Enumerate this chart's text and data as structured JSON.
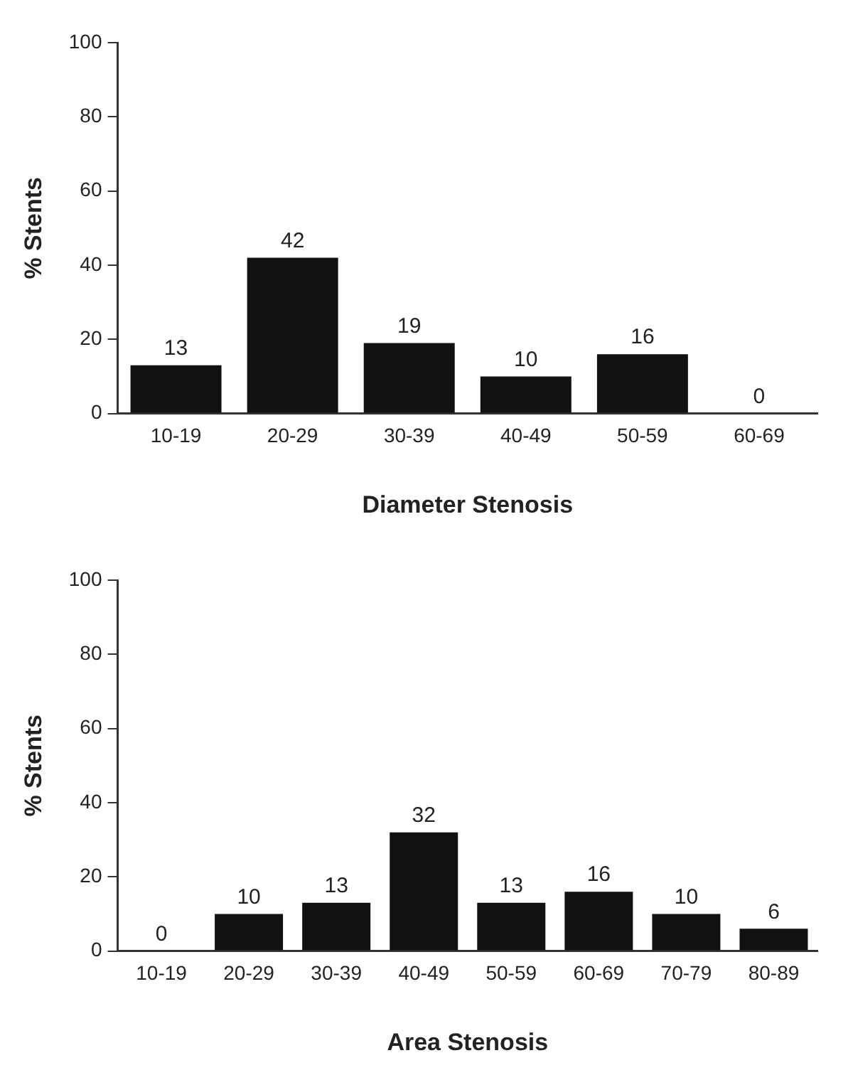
{
  "chart_data": [
    {
      "type": "bar",
      "xlabel": "Diameter Stenosis",
      "ylabel": "% Stents",
      "categories": [
        "10-19",
        "20-29",
        "30-39",
        "40-49",
        "50-59",
        "60-69"
      ],
      "values": [
        13,
        42,
        19,
        10,
        16,
        0
      ],
      "color": "#111111",
      "ylim": [
        0,
        100
      ],
      "yticks": [
        0,
        20,
        40,
        60,
        80,
        100
      ],
      "grid": false,
      "legend": false,
      "data_labels": true
    },
    {
      "type": "bar",
      "xlabel": "Area Stenosis",
      "ylabel": "% Stents",
      "categories": [
        "10-19",
        "20-29",
        "30-39",
        "40-49",
        "50-59",
        "60-69",
        "70-79",
        "80-89"
      ],
      "values": [
        0,
        10,
        13,
        32,
        13,
        16,
        10,
        6
      ],
      "color": "#111111",
      "ylim": [
        0,
        100
      ],
      "yticks": [
        0,
        20,
        40,
        60,
        80,
        100
      ],
      "grid": false,
      "legend": false,
      "data_labels": true
    }
  ]
}
